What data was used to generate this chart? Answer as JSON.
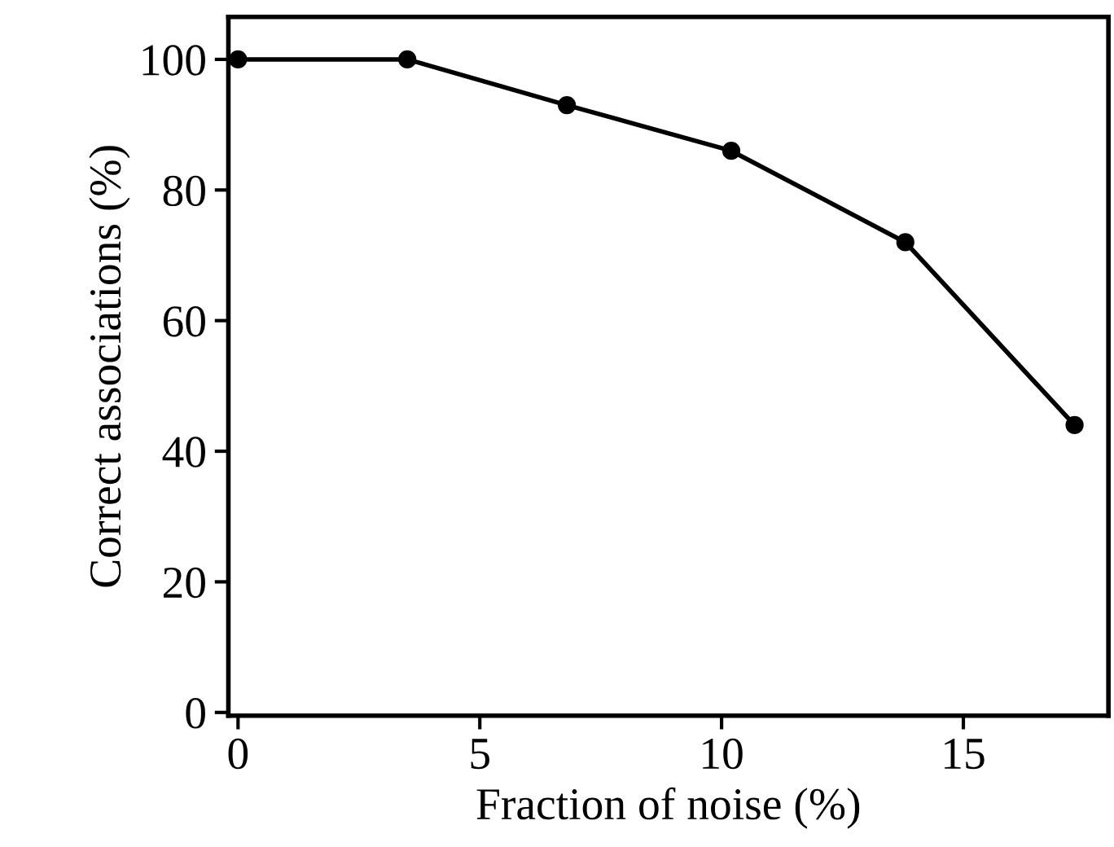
{
  "chart_data": {
    "type": "line",
    "xlabel": "Fraction of noise (%)",
    "ylabel": "Correct associations (%)",
    "x": [
      0,
      3.5,
      6.8,
      10.2,
      13.8,
      17.3
    ],
    "series": [
      {
        "color": "#000000",
        "values": [
          100,
          100,
          93,
          86,
          72,
          44
        ]
      }
    ],
    "xlim": [
      -0.2,
      18
    ],
    "ylim": [
      -0.5,
      106.5
    ],
    "xticks": [
      0,
      5,
      10,
      15
    ],
    "yticks": [
      0,
      20,
      40,
      60,
      80,
      100
    ],
    "marker": "circle",
    "line_style": "solid",
    "grid": false,
    "legend": false
  }
}
